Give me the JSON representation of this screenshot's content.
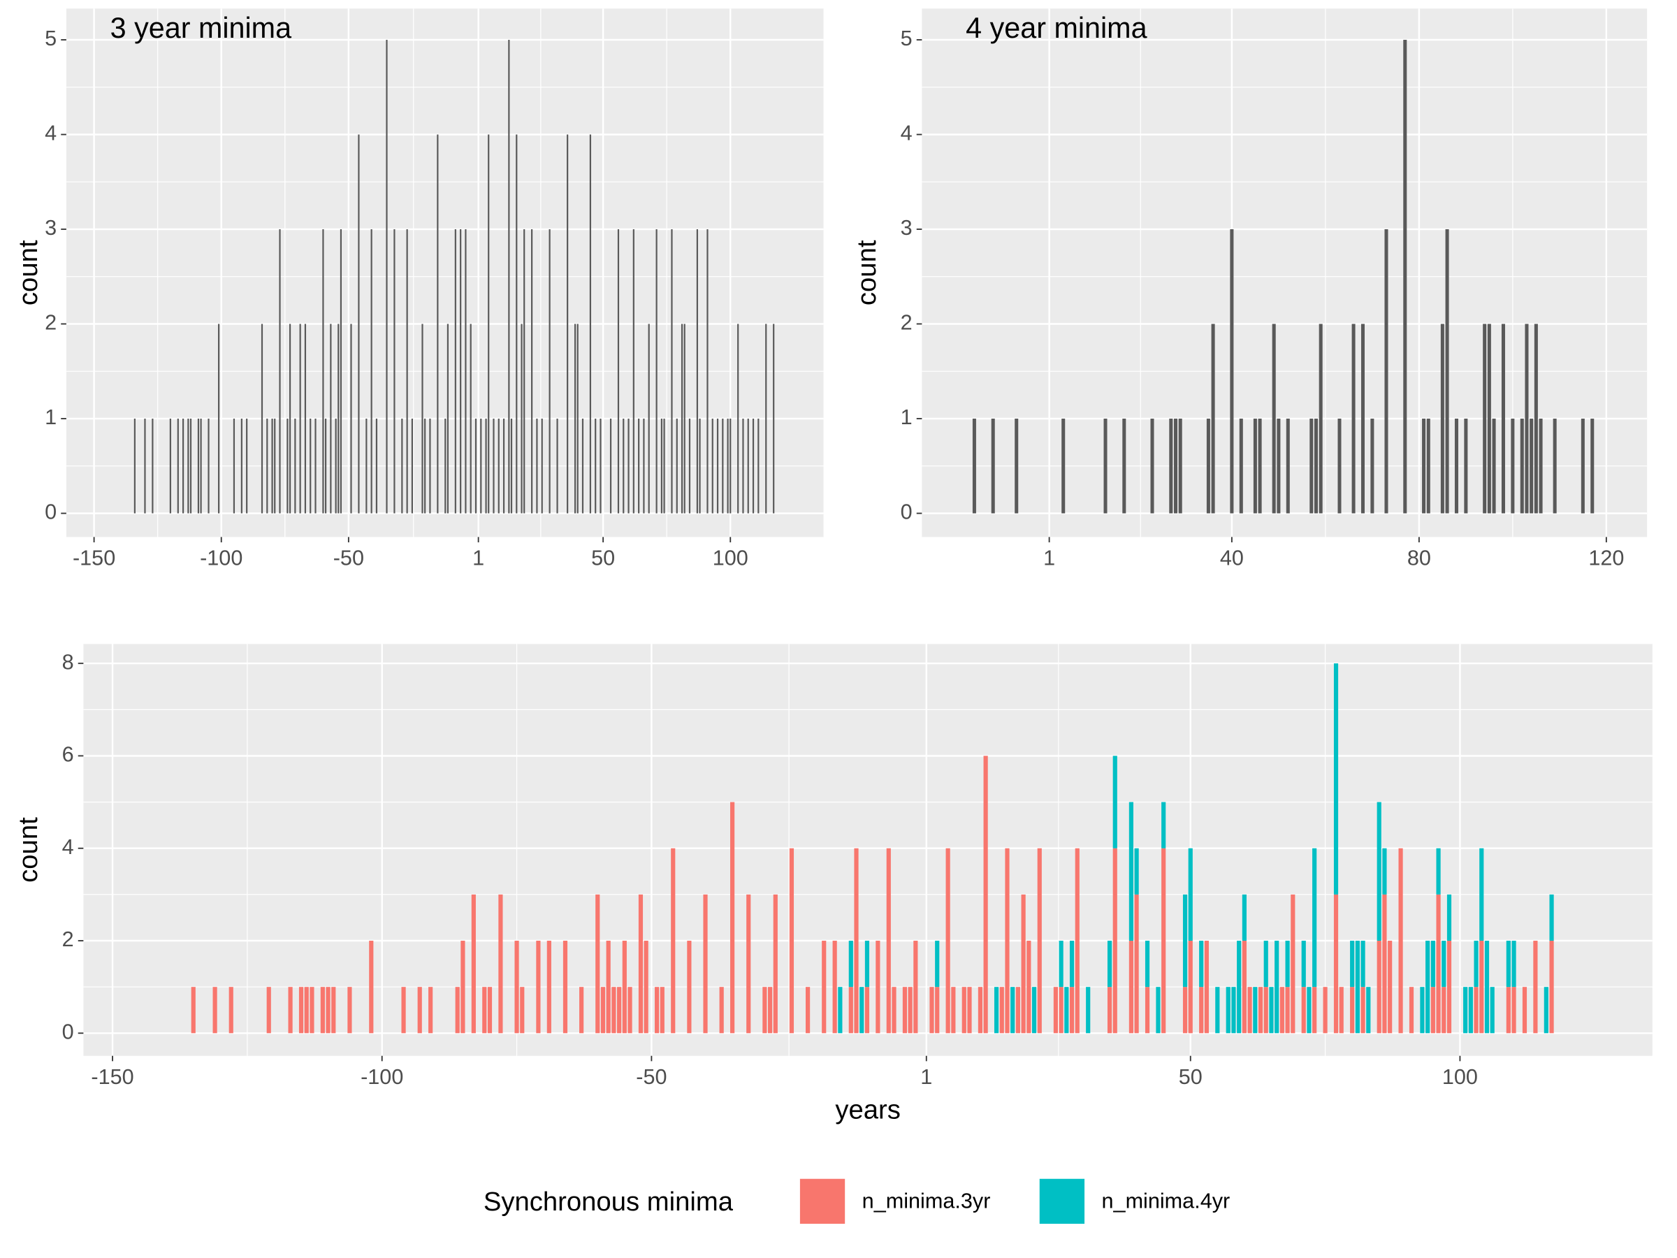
{
  "chart_data": [
    {
      "type": "bar",
      "annotation": "3 year minima",
      "ylabel": "count",
      "color": "#595959",
      "grid": true,
      "xlim": [
        -160.9,
        136.6
      ],
      "ylim": [
        -0.25,
        5.33
      ],
      "xticks": [
        -150,
        -100,
        -50,
        1,
        50,
        100
      ],
      "yticks": [
        0,
        1,
        2,
        3,
        4,
        5
      ],
      "x": [
        -134,
        -130,
        -127,
        -120,
        -117,
        -115,
        -113,
        -112,
        -109,
        -108,
        -105,
        -101,
        -95,
        -92,
        -90,
        -84,
        -82,
        -80,
        -79,
        -77,
        -74,
        -73,
        -71,
        -69,
        -67,
        -65,
        -63,
        -60,
        -59,
        -57,
        -55,
        -54,
        -53,
        -49,
        -46,
        -43,
        -41,
        -39,
        -35,
        -32,
        -29,
        -27,
        -25,
        -21,
        -20,
        -18,
        -15,
        -12,
        -11,
        -8,
        -6,
        -4,
        -2,
        0,
        2,
        4,
        5,
        7,
        9,
        11,
        13,
        14,
        16,
        18,
        19,
        22,
        24,
        26,
        29,
        32,
        36,
        39,
        40,
        42,
        45,
        47,
        49,
        53,
        56,
        58,
        60,
        62,
        64,
        66,
        68,
        71,
        73,
        74,
        77,
        79,
        81,
        82,
        84,
        87,
        88,
        91,
        93,
        95,
        97,
        99,
        100,
        103,
        105,
        107,
        109,
        111,
        114,
        117
      ],
      "values": [
        1,
        1,
        1,
        1,
        1,
        1,
        1,
        1,
        1,
        1,
        1,
        2,
        1,
        1,
        1,
        2,
        1,
        1,
        1,
        3,
        1,
        2,
        1,
        2,
        2,
        1,
        1,
        3,
        1,
        2,
        1,
        2,
        3,
        2,
        4,
        1,
        3,
        1,
        5,
        3,
        1,
        3,
        1,
        2,
        1,
        1,
        4,
        1,
        2,
        3,
        3,
        3,
        2,
        1,
        1,
        1,
        4,
        1,
        1,
        1,
        5,
        1,
        4,
        2,
        3,
        3,
        1,
        1,
        3,
        1,
        4,
        2,
        2,
        1,
        4,
        1,
        1,
        1,
        3,
        1,
        1,
        3,
        1,
        1,
        2,
        3,
        1,
        1,
        3,
        1,
        2,
        2,
        1,
        3,
        1,
        3,
        1,
        1,
        1,
        1,
        1,
        2,
        1,
        1,
        1,
        1,
        2,
        2
      ]
    },
    {
      "type": "bar",
      "annotation": "4 year minima",
      "ylabel": "count",
      "color": "#595959",
      "grid": true,
      "xlim": [
        -26.2,
        128.7
      ],
      "ylim": [
        -0.25,
        5.33
      ],
      "xticks": [
        1,
        40,
        80,
        120
      ],
      "yticks": [
        0,
        1,
        2,
        3,
        4,
        5
      ],
      "x": [
        -15,
        -11,
        -6,
        4,
        13,
        17,
        23,
        27,
        28,
        29,
        35,
        36,
        40,
        42,
        45,
        46,
        49,
        50,
        52,
        57,
        58,
        59,
        63,
        66,
        68,
        70,
        73,
        77,
        81,
        82,
        85,
        86,
        88,
        90,
        94,
        95,
        96,
        98,
        100,
        102,
        103,
        104,
        105,
        106,
        109,
        115,
        117
      ],
      "values": [
        1,
        1,
        1,
        1,
        1,
        1,
        1,
        1,
        1,
        1,
        1,
        2,
        3,
        1,
        1,
        1,
        2,
        1,
        1,
        1,
        1,
        2,
        1,
        2,
        2,
        1,
        3,
        5,
        1,
        1,
        2,
        3,
        1,
        1,
        2,
        2,
        1,
        2,
        1,
        1,
        2,
        1,
        2,
        1,
        1,
        1,
        1
      ]
    },
    {
      "type": "bar",
      "stacked": true,
      "xlabel": "years",
      "ylabel": "count",
      "grid": true,
      "legend_title": "Synchronous minima",
      "legend": "bottom",
      "xlim": [
        -155.4,
        135.7
      ],
      "ylim": [
        -0.49,
        8.42
      ],
      "xticks": [
        -150,
        -100,
        -50,
        1,
        50,
        100
      ],
      "yticks": [
        0,
        2,
        4,
        6,
        8
      ],
      "x": [
        -135,
        -131,
        -128,
        -121,
        -117,
        -115,
        -114,
        -113,
        -111,
        -110,
        -109,
        -106,
        -102,
        -96,
        -93,
        -91,
        -86,
        -85,
        -83,
        -81,
        -80,
        -78,
        -75,
        -74,
        -71,
        -69,
        -66,
        -63,
        -60,
        -59,
        -58,
        -57,
        -56,
        -55,
        -54,
        -52,
        -51,
        -49,
        -48,
        -46,
        -43,
        -40,
        -37,
        -35,
        -32,
        -29,
        -28,
        -27,
        -24,
        -21,
        -18,
        -16,
        -15,
        -13,
        -12,
        -11,
        -10,
        -8,
        -6,
        -5,
        -3,
        -2,
        -1,
        2,
        3,
        5,
        6,
        8,
        9,
        11,
        12,
        14,
        15,
        16,
        17,
        18,
        19,
        20,
        21,
        22,
        25,
        26,
        27,
        28,
        29,
        31,
        35,
        36,
        39,
        40,
        42,
        44,
        45,
        49,
        50,
        52,
        53,
        55,
        57,
        58,
        59,
        60,
        61,
        62,
        63,
        64,
        65,
        66,
        67,
        68,
        69,
        71,
        72,
        73,
        75,
        77,
        78,
        80,
        81,
        82,
        83,
        85,
        86,
        87,
        89,
        91,
        93,
        94,
        95,
        96,
        97,
        98,
        101,
        102,
        103,
        104,
        105,
        106,
        109,
        110,
        112,
        114,
        116,
        117
      ],
      "series": [
        {
          "name": "n_minima.3yr",
          "color": "#F8766D",
          "values": [
            1,
            1,
            1,
            1,
            1,
            1,
            1,
            1,
            1,
            1,
            1,
            1,
            2,
            1,
            1,
            1,
            1,
            2,
            3,
            1,
            1,
            3,
            2,
            1,
            2,
            2,
            2,
            1,
            3,
            1,
            2,
            1,
            1,
            2,
            1,
            3,
            2,
            1,
            1,
            4,
            2,
            3,
            1,
            5,
            3,
            1,
            1,
            3,
            4,
            1,
            2,
            2,
            0,
            1,
            4,
            0,
            1,
            2,
            4,
            1,
            1,
            1,
            2,
            1,
            1,
            4,
            1,
            1,
            1,
            1,
            6,
            0,
            1,
            4,
            0,
            1,
            3,
            2,
            0,
            4,
            1,
            1,
            0,
            1,
            4,
            0,
            1,
            4,
            2,
            3,
            1,
            0,
            4,
            1,
            2,
            1,
            2,
            0,
            0,
            0,
            0,
            2,
            1,
            0,
            1,
            1,
            0,
            0,
            1,
            1,
            3,
            1,
            0,
            1,
            1,
            3,
            1,
            1,
            0,
            1,
            0,
            2,
            3,
            2,
            4,
            1,
            0,
            0,
            1,
            3,
            1,
            2,
            0,
            0,
            1,
            2,
            0,
            0,
            1,
            1,
            1,
            2,
            0,
            2
          ]
        },
        {
          "name": "n_minima.4yr",
          "color": "#00BFC4",
          "values": [
            0,
            0,
            0,
            0,
            0,
            0,
            0,
            0,
            0,
            0,
            0,
            0,
            0,
            0,
            0,
            0,
            0,
            0,
            0,
            0,
            0,
            0,
            0,
            0,
            0,
            0,
            0,
            0,
            0,
            0,
            0,
            0,
            0,
            0,
            0,
            0,
            0,
            0,
            0,
            0,
            0,
            0,
            0,
            0,
            0,
            0,
            0,
            0,
            0,
            0,
            0,
            0,
            1,
            1,
            0,
            1,
            1,
            0,
            0,
            0,
            0,
            0,
            0,
            0,
            1,
            0,
            0,
            0,
            0,
            0,
            0,
            1,
            0,
            0,
            1,
            0,
            0,
            0,
            1,
            0,
            0,
            1,
            1,
            1,
            0,
            1,
            1,
            2,
            3,
            1,
            1,
            1,
            1,
            2,
            2,
            1,
            0,
            1,
            1,
            1,
            2,
            1,
            0,
            1,
            0,
            1,
            1,
            2,
            0,
            1,
            0,
            1,
            1,
            3,
            0,
            5,
            0,
            1,
            2,
            1,
            1,
            3,
            1,
            0,
            0,
            0,
            1,
            2,
            1,
            1,
            1,
            1,
            1,
            1,
            1,
            2,
            2,
            1,
            1,
            1,
            0,
            0,
            1,
            1
          ]
        }
      ]
    }
  ]
}
